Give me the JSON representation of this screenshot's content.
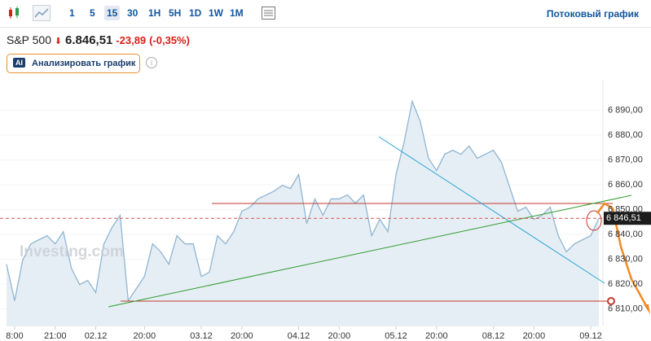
{
  "toolbar": {
    "timeframes": [
      "1",
      "5",
      "15",
      "30",
      "1H",
      "5H",
      "1D",
      "1W",
      "1M"
    ],
    "selected": "15",
    "stream": "Потоковый график"
  },
  "header": {
    "symbol": "S&P 500",
    "price": "6.846,51",
    "change": "-23,89",
    "change_pct": "(-0,35%)"
  },
  "ai_button": {
    "badge": "AI",
    "label": "Анализировать график"
  },
  "chart_data": {
    "type": "area",
    "watermark": "Investing.com",
    "color": "#8fb5d2",
    "fill": "#e6eef5",
    "xlim": [
      0,
      73
    ],
    "xticks": [
      {
        "value": 1,
        "label": "8:00"
      },
      {
        "value": 6,
        "label": "21:00"
      },
      {
        "value": 11,
        "label": "02.12"
      },
      {
        "value": 17,
        "label": "20:00"
      },
      {
        "value": 24,
        "label": "03.12"
      },
      {
        "value": 29,
        "label": "20:00"
      },
      {
        "value": 36,
        "label": "04.12"
      },
      {
        "value": 41,
        "label": "20:00"
      },
      {
        "value": 48,
        "label": "05.12"
      },
      {
        "value": 53,
        "label": "20:00"
      },
      {
        "value": 60,
        "label": "08.12"
      },
      {
        "value": 65,
        "label": "20:00"
      },
      {
        "value": 72,
        "label": "09.12"
      }
    ],
    "ylim": [
      6803,
      6900
    ],
    "yticks": [
      {
        "value": 6810,
        "label": "6 810,00"
      },
      {
        "value": 6820,
        "label": "6 820,00"
      },
      {
        "value": 6830,
        "label": "6 830,00"
      },
      {
        "value": 6840,
        "label": "6 840,00"
      },
      {
        "value": 6850,
        "label": "6 850,00"
      },
      {
        "value": 6860,
        "label": "6 860,00"
      },
      {
        "value": 6870,
        "label": "6 870,00"
      },
      {
        "value": 6880,
        "label": "6 880,00"
      },
      {
        "value": 6890,
        "label": "6 890,00"
      }
    ],
    "grid": true,
    "values": [
      6828,
      6813.3,
      6829.7,
      6836.2,
      6837.9,
      6839.5,
      6836.2,
      6841.1,
      6826.4,
      6819.8,
      6821.5,
      6816.6,
      6836.2,
      6842.8,
      6847.7,
      6813.3,
      6818.2,
      6823.1,
      6836.2,
      6833,
      6828,
      6839.5,
      6836.2,
      6836.2,
      6823.1,
      6824.8,
      6839.5,
      6836.2,
      6841.1,
      6849.3,
      6851,
      6854.3,
      6855.9,
      6857.5,
      6859.8,
      6858.5,
      6864.1,
      6844.4,
      6854.3,
      6847.7,
      6854.3,
      6854.3,
      6855.9,
      6852.6,
      6855.9,
      6839.5,
      6846.1,
      6841.1,
      6864.1,
      6877.2,
      6893.6,
      6885.4,
      6870.7,
      6865.7,
      6872.3,
      6873.9,
      6872.3,
      6875.6,
      6870.7,
      6872.3,
      6873.9,
      6869,
      6859.2,
      6849.3,
      6851,
      6846.1,
      6847.7,
      6851,
      6839.5,
      6833,
      6836.2,
      6837.9,
      6839.5,
      6846.51
    ],
    "last_label": "6 846,51"
  }
}
